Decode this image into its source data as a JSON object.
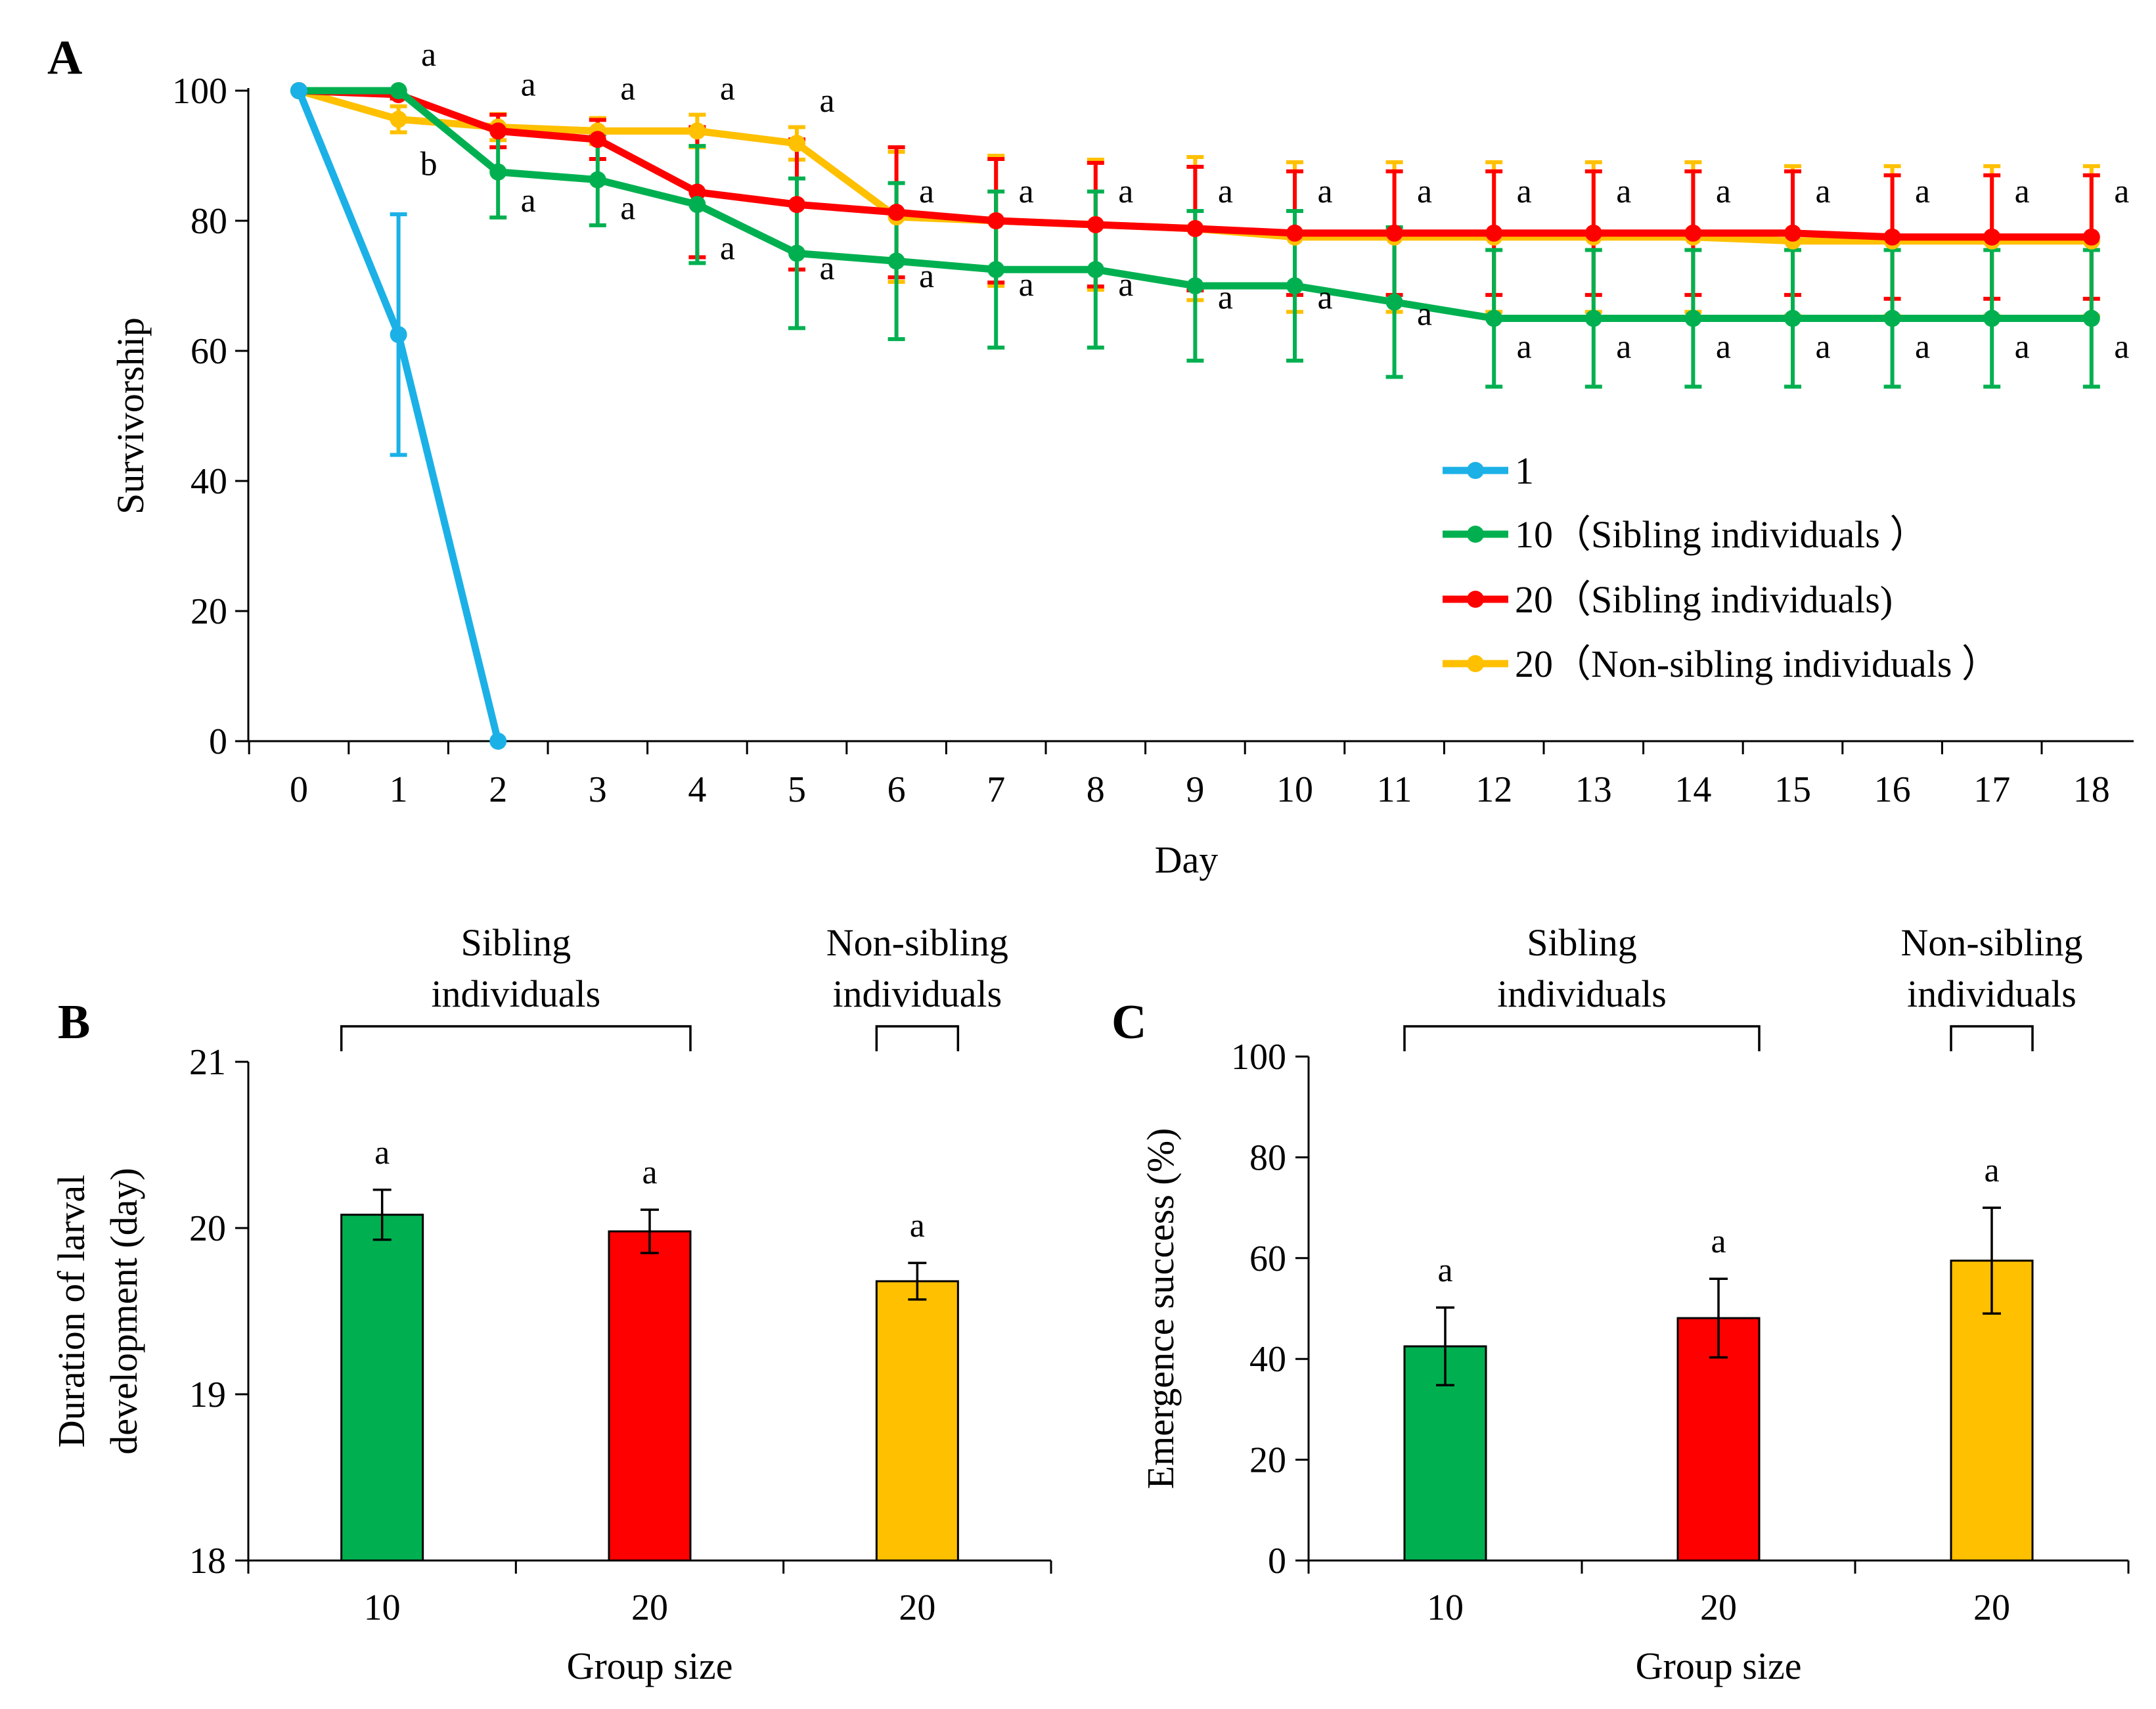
{
  "figure": {
    "colors": {
      "blue": "#1BB1E7",
      "green": "#00B050",
      "red": "#FF0000",
      "yellow": "#FFC000",
      "black": "#000000"
    }
  },
  "chart_data": [
    {
      "panel": "A",
      "type": "line",
      "xlabel": "Day",
      "ylabel": "Survivorship",
      "xlim": [
        0,
        18
      ],
      "ylim": [
        0,
        100
      ],
      "x_ticks": [
        "0",
        "1",
        "2",
        "3",
        "4",
        "5",
        "6",
        "7",
        "8",
        "9",
        "10",
        "11",
        "12",
        "13",
        "14",
        "15",
        "16",
        "17",
        "18"
      ],
      "y_ticks": [
        "0",
        "20",
        "40",
        "60",
        "80",
        "100"
      ],
      "legend_position": "center-right",
      "series": [
        {
          "name": "1",
          "legend": "1",
          "color": "#1BB1E7",
          "x": [
            0,
            1,
            2
          ],
          "values": [
            100,
            62.5,
            0
          ],
          "err": [
            0,
            18.5,
            0
          ]
        },
        {
          "name": "10 (Sibling individuals)",
          "legend": "10（Sibling individuals ）",
          "color": "#00B050",
          "x": [
            0,
            1,
            2,
            3,
            4,
            5,
            6,
            7,
            8,
            9,
            10,
            11,
            12,
            13,
            14,
            15,
            16,
            17,
            18
          ],
          "values": [
            100,
            100,
            87.5,
            86.3,
            82.5,
            75,
            73.8,
            72.5,
            72.5,
            70,
            70,
            67.5,
            65,
            65,
            65,
            65,
            65,
            65,
            65
          ],
          "err": [
            0,
            0,
            7,
            7,
            9,
            11.5,
            12,
            12,
            12,
            11.5,
            11.5,
            11.5,
            10.5,
            10.5,
            10.5,
            10.5,
            10.5,
            10.5,
            10.5
          ],
          "letters": [
            "",
            "",
            "a",
            "a",
            "a",
            "a",
            "a",
            "a",
            "a",
            "a",
            "a",
            "a",
            "a",
            "a",
            "a",
            "a",
            "a",
            "a",
            "a"
          ]
        },
        {
          "name": "20 (Sibling individuals)",
          "legend": "20（Sibling individuals)",
          "color": "#FF0000",
          "x": [
            0,
            1,
            2,
            3,
            4,
            5,
            6,
            7,
            8,
            9,
            10,
            11,
            12,
            13,
            14,
            15,
            16,
            17,
            18
          ],
          "values": [
            100,
            99.4,
            93.8,
            92.5,
            84.4,
            82.5,
            81.3,
            80,
            79.4,
            78.8,
            78.1,
            78.1,
            78.1,
            78.1,
            78.1,
            78.1,
            77.5,
            77.5,
            77.5
          ],
          "err": [
            0,
            0.6,
            2.5,
            3,
            10,
            10,
            10,
            9.5,
            9.5,
            9.5,
            9.5,
            9.5,
            9.5,
            9.5,
            9.5,
            9.5,
            9.5,
            9.5,
            9.5
          ],
          "letters": [
            "",
            "a",
            "a",
            "a",
            "a",
            "a",
            "a",
            "a",
            "a",
            "a",
            "a",
            "a",
            "a",
            "a",
            "a",
            "a",
            "a",
            "a",
            "a"
          ]
        },
        {
          "name": "20 (Non-sibling individuals)",
          "legend": "20（Non-sibling individuals ）",
          "color": "#FFC000",
          "x": [
            0,
            1,
            2,
            3,
            4,
            5,
            6,
            7,
            8,
            9,
            10,
            11,
            12,
            13,
            14,
            15,
            16,
            17,
            18
          ],
          "values": [
            100,
            95.6,
            94.4,
            93.8,
            93.8,
            91.9,
            80.6,
            80,
            79.4,
            78.8,
            77.5,
            77.5,
            77.5,
            77.5,
            77.5,
            76.9,
            76.9,
            76.9,
            76.9
          ],
          "err": [
            0,
            2,
            2,
            2,
            2.5,
            2.5,
            10,
            10,
            10,
            11,
            11.5,
            11.5,
            11.5,
            11.5,
            11.5,
            11.5,
            11.5,
            11.5,
            11.5
          ],
          "letters": [
            "",
            "b",
            "",
            "",
            "",
            "",
            "",
            "",
            "",
            "",
            "",
            "",
            "",
            "",
            "",
            "",
            "",
            "",
            ""
          ]
        }
      ]
    },
    {
      "panel": "B",
      "type": "bar",
      "xlabel": "Group size",
      "ylabel_lines": [
        "Duration of larval",
        "development (day)"
      ],
      "ylim": [
        18,
        21
      ],
      "y_ticks": [
        "18",
        "19",
        "20",
        "21"
      ],
      "categories": [
        "10",
        "20",
        "20"
      ],
      "values": [
        20.08,
        19.98,
        19.68
      ],
      "err": [
        0.15,
        0.13,
        0.11
      ],
      "colors": [
        "#00B050",
        "#FF0000",
        "#FFC000"
      ],
      "letters": [
        "a",
        "a",
        "a"
      ],
      "brackets": [
        {
          "label_lines": [
            "Sibling",
            "individuals"
          ],
          "from": 0,
          "to": 1
        },
        {
          "label_lines": [
            "Non-sibling",
            "individuals"
          ],
          "from": 2,
          "to": 2
        }
      ]
    },
    {
      "panel": "C",
      "type": "bar",
      "xlabel": "Group size",
      "ylabel": "Emergence success (%)",
      "ylim": [
        0,
        100
      ],
      "y_ticks": [
        "0",
        "20",
        "40",
        "60",
        "80",
        "100"
      ],
      "categories": [
        "10",
        "20",
        "20"
      ],
      "values": [
        42.5,
        48.1,
        59.5
      ],
      "err": [
        7.7,
        7.8,
        10.5
      ],
      "colors": [
        "#00B050",
        "#FF0000",
        "#FFC000"
      ],
      "letters": [
        "a",
        "a",
        "a"
      ],
      "brackets": [
        {
          "label_lines": [
            "Sibling",
            "individuals"
          ],
          "from": 0,
          "to": 1
        },
        {
          "label_lines": [
            "Non-sibling",
            "individuals"
          ],
          "from": 2,
          "to": 2
        }
      ]
    }
  ]
}
